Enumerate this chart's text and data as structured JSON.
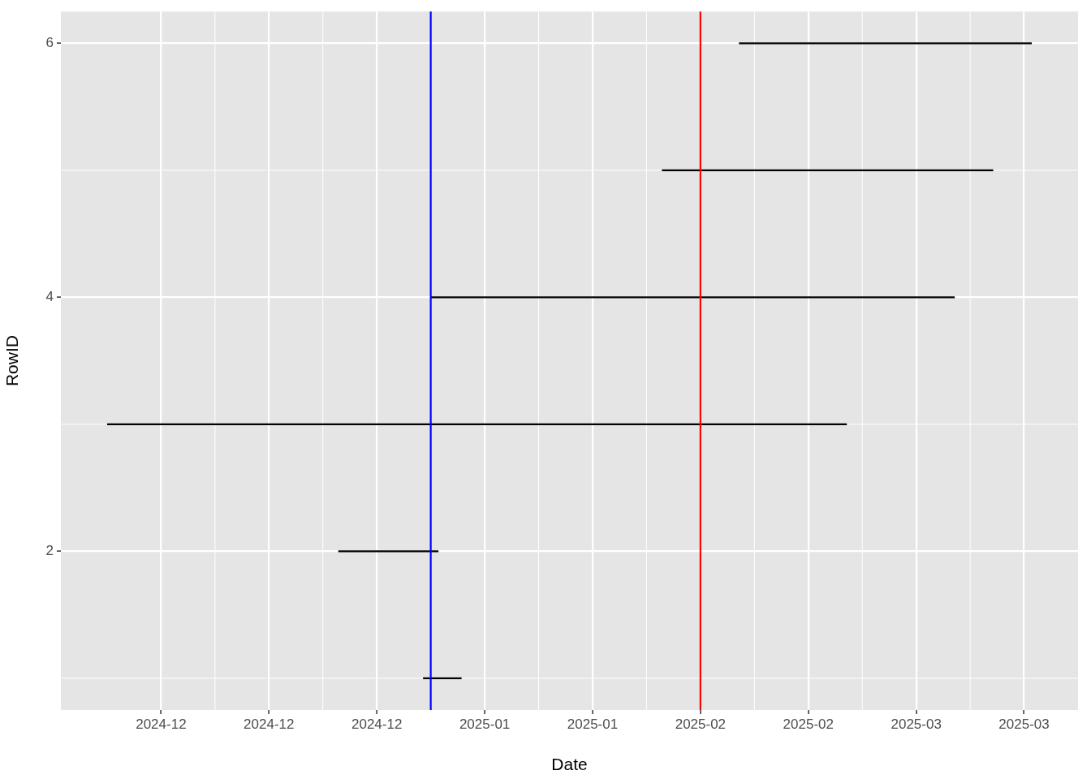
{
  "chart_data": {
    "type": "line",
    "xlabel": "Date",
    "ylabel": "RowID",
    "series": [
      {
        "color": "#000000",
        "x": [
          "2025-01-04",
          "2025-01-09"
        ],
        "values": [
          1,
          1
        ]
      },
      {
        "color": "#000000",
        "x": [
          "2024-12-24",
          "2025-01-06"
        ],
        "values": [
          2,
          2
        ]
      },
      {
        "color": "#000000",
        "x": [
          "2024-11-24",
          "2025-02-28"
        ],
        "values": [
          3,
          3
        ]
      },
      {
        "color": "#000000",
        "x": [
          "2025-01-05",
          "2025-03-14"
        ],
        "values": [
          4,
          4
        ]
      },
      {
        "color": "#000000",
        "x": [
          "2025-02-04",
          "2025-03-19"
        ],
        "values": [
          5,
          5
        ]
      },
      {
        "color": "#000000",
        "x": [
          "2025-02-14",
          "2025-03-24"
        ],
        "values": [
          6,
          6
        ]
      }
    ],
    "xlim": [
      "2024-11-18",
      "2025-03-30"
    ],
    "xticks": [
      {
        "value": "2024-12-01",
        "label": "2024-12"
      },
      {
        "value": "2024-12-15",
        "label": "2024-12"
      },
      {
        "value": "2024-12-29",
        "label": "2024-12"
      },
      {
        "value": "2025-01-12",
        "label": "2025-01"
      },
      {
        "value": "2025-01-26",
        "label": "2025-01"
      },
      {
        "value": "2025-02-09",
        "label": "2025-02"
      },
      {
        "value": "2025-02-23",
        "label": "2025-02"
      },
      {
        "value": "2025-03-09",
        "label": "2025-03"
      },
      {
        "value": "2025-03-23",
        "label": "2025-03"
      }
    ],
    "ylim": [
      0.75,
      6.25
    ],
    "yticks": [
      2,
      4,
      6
    ],
    "grid": true,
    "ref_lines": [
      {
        "axis": "x",
        "value": "2025-01-05",
        "color": "#0000ff"
      },
      {
        "axis": "x",
        "value": "2025-02-09",
        "color": "#ff0000"
      }
    ]
  }
}
